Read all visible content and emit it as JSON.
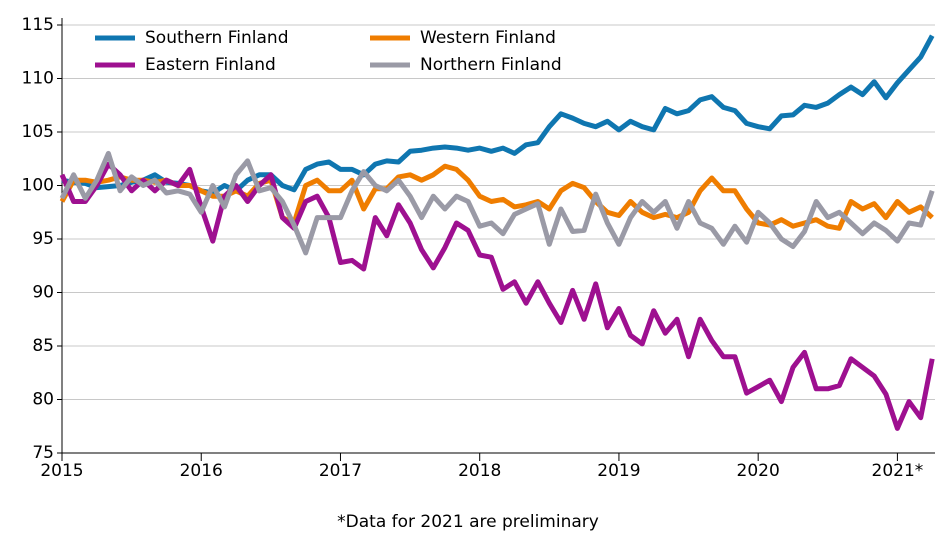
{
  "chart_data": {
    "type": "line",
    "footnote": "*Data for 2021 are preliminary",
    "x": [
      2015,
      2015.083,
      2015.167,
      2015.25,
      2015.333,
      2015.417,
      2015.5,
      2015.583,
      2015.667,
      2015.75,
      2015.833,
      2015.917,
      2016,
      2016.083,
      2016.167,
      2016.25,
      2016.333,
      2016.417,
      2016.5,
      2016.583,
      2016.667,
      2016.75,
      2016.833,
      2016.917,
      2017,
      2017.083,
      2017.167,
      2017.25,
      2017.333,
      2017.417,
      2017.5,
      2017.583,
      2017.667,
      2017.75,
      2017.833,
      2017.917,
      2018,
      2018.083,
      2018.167,
      2018.25,
      2018.333,
      2018.417,
      2018.5,
      2018.583,
      2018.667,
      2018.75,
      2018.833,
      2018.917,
      2019,
      2019.083,
      2019.167,
      2019.25,
      2019.333,
      2019.417,
      2019.5,
      2019.583,
      2019.667,
      2019.75,
      2019.833,
      2019.917,
      2020,
      2020.083,
      2020.167,
      2020.25,
      2020.333,
      2020.417,
      2020.5,
      2020.583,
      2020.667,
      2020.75,
      2020.833,
      2020.917,
      2021,
      2021.083,
      2021.167,
      2021.25
    ],
    "series": [
      {
        "name": "Southern Finland",
        "color": "#0f76b0",
        "values": [
          100.5,
          100.3,
          100.2,
          99.8,
          99.9,
          100,
          100.3,
          100.5,
          101,
          100.3,
          100.2,
          100,
          99.5,
          99.3,
          100,
          99.5,
          100.5,
          101,
          101,
          100,
          99.6,
          101.5,
          102,
          102.2,
          101.5,
          101.5,
          101,
          102,
          102.3,
          102.2,
          103.2,
          103.3,
          103.5,
          103.6,
          103.5,
          103.3,
          103.5,
          103.2,
          103.5,
          103,
          103.8,
          104,
          105.5,
          106.7,
          106.3,
          105.8,
          105.5,
          106,
          105.2,
          106,
          105.5,
          105.2,
          107.2,
          106.7,
          107,
          108,
          108.3,
          107.3,
          107,
          105.8,
          105.5,
          105.3,
          106.5,
          106.6,
          107.5,
          107.3,
          107.7,
          108.5,
          109.2,
          108.5,
          109.7,
          108.2,
          109.6,
          110.8,
          112,
          114
        ]
      },
      {
        "name": "Western Finland",
        "color": "#ef7d00",
        "values": [
          98.5,
          100.5,
          100.5,
          100.3,
          100.5,
          100.8,
          100.5,
          100.5,
          100.3,
          100.5,
          100,
          100,
          99.5,
          99,
          99,
          99.5,
          99,
          100.2,
          100.5,
          97,
          96.5,
          100,
          100.5,
          99.5,
          99.5,
          100.5,
          97.8,
          99.7,
          99.7,
          100.8,
          101,
          100.5,
          101,
          101.8,
          101.5,
          100.5,
          99,
          98.5,
          98.7,
          98,
          98.2,
          98.5,
          97.8,
          99.5,
          100.2,
          99.8,
          98.5,
          97.5,
          97.2,
          98.5,
          97.5,
          97,
          97.3,
          97,
          97.5,
          99.5,
          100.7,
          99.5,
          99.5,
          97.8,
          96.5,
          96.3,
          96.8,
          96.2,
          96.5,
          96.8,
          96.2,
          96,
          98.5,
          97.8,
          98.3,
          97,
          98.5,
          97.5,
          98,
          97
        ]
      },
      {
        "name": "Eastern Finland",
        "color": "#9e1090",
        "values": [
          101,
          98.5,
          98.5,
          100,
          102,
          101,
          99.5,
          100.5,
          99.5,
          100.5,
          100,
          101.5,
          98,
          94.8,
          99,
          100,
          98.5,
          100,
          101,
          97,
          96,
          98.5,
          99,
          97,
          92.8,
          93,
          92.2,
          97,
          95.3,
          98.2,
          96.5,
          94,
          92.3,
          94.2,
          96.5,
          95.8,
          93.5,
          93.3,
          90.3,
          91,
          89,
          91,
          89,
          87.2,
          90.2,
          87.5,
          90.8,
          86.7,
          88.5,
          86,
          85.2,
          88.3,
          86.2,
          87.5,
          84,
          87.5,
          85.5,
          84,
          84,
          80.6,
          81.2,
          81.8,
          79.8,
          83,
          84.4,
          81,
          81,
          81.3,
          83.8,
          83,
          82.2,
          80.5,
          77.3,
          79.8,
          78.3,
          83.8
        ]
      },
      {
        "name": "Northern Finland",
        "color": "#9a9aa6",
        "values": [
          98.8,
          101,
          98.8,
          100.5,
          103,
          99.5,
          100.8,
          100,
          100.5,
          99.3,
          99.5,
          99.2,
          97.5,
          100,
          98,
          101,
          102.3,
          99.5,
          99.8,
          98.5,
          96.3,
          93.7,
          97,
          97,
          97,
          99.5,
          101.3,
          100,
          99.5,
          100.5,
          99,
          97,
          99,
          97.8,
          99,
          98.5,
          96.2,
          96.5,
          95.5,
          97.3,
          97.8,
          98.3,
          94.5,
          97.8,
          95.7,
          95.8,
          99.2,
          96.5,
          94.5,
          97,
          98.5,
          97.5,
          98.5,
          96,
          98.5,
          96.5,
          96,
          94.5,
          96.2,
          94.7,
          97.5,
          96.5,
          95,
          94.3,
          95.7,
          98.5,
          97,
          97.5,
          96.5,
          95.5,
          96.5,
          95.8,
          94.8,
          96.5,
          96.3,
          99.5
        ]
      }
    ],
    "xlim": [
      2015,
      2021.27
    ],
    "xticks": [
      2015,
      2016,
      2017,
      2018,
      2019,
      2020,
      {
        "value": 2021,
        "label": "2021*"
      }
    ],
    "ylim": [
      75,
      115
    ],
    "yticks": [
      75,
      80,
      85,
      90,
      95,
      100,
      105,
      110,
      115
    ],
    "grid": true
  }
}
